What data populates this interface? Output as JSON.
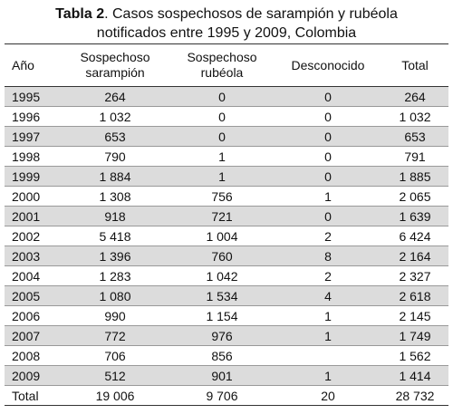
{
  "title": {
    "label": "Tabla 2",
    "text": ". Casos sospechosos de sarampión y rubéola notificados entre 1995 y 2009, Colombia"
  },
  "table": {
    "header": [
      "Año",
      "Sospechoso sarampión",
      "Sospechoso rubéola",
      "Desconocido",
      "Total"
    ],
    "rows": [
      [
        "1995",
        "264",
        "0",
        "0",
        "264"
      ],
      [
        "1996",
        "1 032",
        "0",
        "0",
        "1 032"
      ],
      [
        "1997",
        "653",
        "0",
        "0",
        "653"
      ],
      [
        "1998",
        "790",
        "1",
        "0",
        "791"
      ],
      [
        "1999",
        "1 884",
        "1",
        "0",
        "1 885"
      ],
      [
        "2000",
        "1 308",
        "756",
        "1",
        "2 065"
      ],
      [
        "2001",
        "918",
        "721",
        "0",
        "1 639"
      ],
      [
        "2002",
        "5 418",
        "1 004",
        "2",
        "6 424"
      ],
      [
        "2003",
        "1 396",
        "760",
        "8",
        "2 164"
      ],
      [
        "2004",
        "1 283",
        "1 042",
        "2",
        "2 327"
      ],
      [
        "2005",
        "1 080",
        "1 534",
        "4",
        "2 618"
      ],
      [
        "2006",
        "990",
        "1 154",
        "1",
        "2 145"
      ],
      [
        "2007",
        "772",
        "976",
        "1",
        "1 749"
      ],
      [
        "2008",
        "706",
        "856",
        null,
        "1 562"
      ],
      [
        "2009",
        "512",
        "901",
        "1",
        "1 414"
      ]
    ],
    "total": [
      "Total",
      "19 006",
      "9 706",
      "20",
      "28 732"
    ]
  }
}
